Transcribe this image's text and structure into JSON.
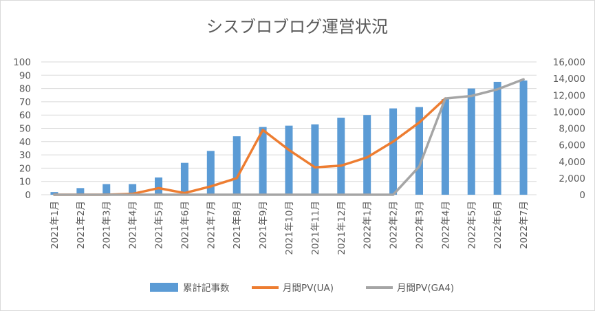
{
  "chart_data": {
    "type": "bar+line",
    "title": "シスブロブログ運営状況",
    "categories": [
      "2021年1月",
      "2021年2月",
      "2021年3月",
      "2021年4月",
      "2021年5月",
      "2021年6月",
      "2021年7月",
      "2021年8月",
      "2021年9月",
      "2021年10月",
      "2021年11月",
      "2021年12月",
      "2022年1月",
      "2022年2月",
      "2022年3月",
      "2022年4月",
      "2022年5月",
      "2022年6月",
      "2022年7月"
    ],
    "series": [
      {
        "name": "累計記事数",
        "kind": "bar",
        "axis": "left",
        "color": "#5b9bd5",
        "values": [
          2,
          5,
          8,
          8,
          13,
          24,
          33,
          44,
          51,
          52,
          53,
          58,
          60,
          65,
          66,
          72,
          80,
          85,
          86
        ]
      },
      {
        "name": "月間PV(UA)",
        "kind": "line",
        "axis": "right",
        "color": "#ed7d31",
        "values": [
          0,
          0,
          0,
          100,
          800,
          200,
          1000,
          2000,
          7800,
          5400,
          3300,
          3500,
          4500,
          6400,
          8700,
          11600,
          null,
          null,
          null
        ]
      },
      {
        "name": "月間PV(GA4)",
        "kind": "line",
        "axis": "right",
        "color": "#a5a5a5",
        "values": [
          0,
          0,
          0,
          0,
          0,
          0,
          0,
          0,
          0,
          0,
          0,
          0,
          0,
          0,
          3400,
          11600,
          11900,
          12700,
          13900
        ]
      }
    ],
    "y_left": {
      "min": 0,
      "max": 100,
      "step": 10,
      "tick_labels": [
        "0",
        "10",
        "20",
        "30",
        "40",
        "50",
        "60",
        "70",
        "80",
        "90",
        "100"
      ]
    },
    "y_right": {
      "min": 0,
      "max": 16000,
      "step": 2000,
      "tick_labels": [
        "0",
        "2,000",
        "4,000",
        "6,000",
        "8,000",
        "10,000",
        "12,000",
        "14,000",
        "16,000"
      ]
    },
    "grid": true,
    "legend_position": "bottom"
  }
}
